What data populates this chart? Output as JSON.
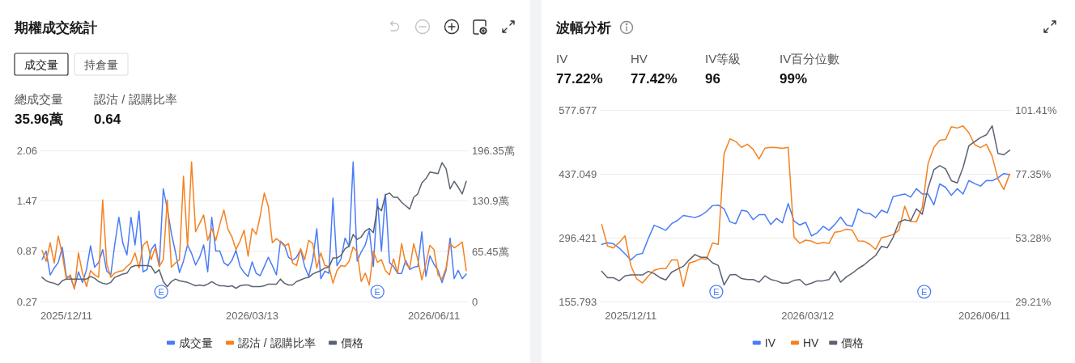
{
  "chart_data": [
    {
      "type": "line",
      "title": "期權成交統計",
      "x": [
        "2025-11-29",
        "2025-12-01",
        "2025-12-03",
        "2025-12-05",
        "2025-12-07",
        "2025-12-09",
        "2025-12-11",
        "2025-12-13",
        "2025-12-15",
        "2025-12-17",
        "2025-12-19",
        "2025-12-21",
        "2025-12-23",
        "2025-12-25",
        "2025-12-27",
        "2025-12-29",
        "2025-12-31",
        "2026-01-02",
        "2026-01-04",
        "2026-01-06",
        "2026-01-08",
        "2026-01-10",
        "2026-01-12",
        "2026-01-14",
        "2026-01-16",
        "2026-01-18",
        "2026-01-20",
        "2026-01-22",
        "2026-01-24",
        "2026-01-26",
        "2026-01-28",
        "2026-01-30",
        "2026-02-01",
        "2026-02-03",
        "2026-02-05",
        "2026-02-07",
        "2026-02-09",
        "2026-02-11",
        "2026-02-13",
        "2026-02-15",
        "2026-02-17",
        "2026-02-19",
        "2026-02-21",
        "2026-02-23",
        "2026-02-25",
        "2026-02-27",
        "2026-03-01",
        "2026-03-03",
        "2026-03-05",
        "2026-03-07",
        "2026-03-09",
        "2026-03-11",
        "2026-03-13",
        "2026-03-15",
        "2026-03-17",
        "2026-03-19",
        "2026-03-21",
        "2026-03-23",
        "2026-03-25",
        "2026-03-27",
        "2026-03-29",
        "2026-03-31",
        "2026-04-02",
        "2026-04-04",
        "2026-04-06",
        "2026-04-08",
        "2026-04-10",
        "2026-04-12",
        "2026-04-14",
        "2026-04-16",
        "2026-04-18",
        "2026-04-20",
        "2026-04-22",
        "2026-04-24",
        "2026-04-26",
        "2026-04-28",
        "2026-04-30",
        "2026-05-02",
        "2026-05-04",
        "2026-05-06",
        "2026-05-08",
        "2026-05-10",
        "2026-05-12",
        "2026-05-14",
        "2026-05-16",
        "2026-05-18",
        "2026-05-20",
        "2026-05-22",
        "2026-05-24",
        "2026-05-26",
        "2026-05-28",
        "2026-05-30",
        "2026-06-01",
        "2026-06-03",
        "2026-06-05",
        "2026-06-07",
        "2026-06-09",
        "2026-06-11",
        "2026-06-13",
        "2026-06-15",
        "2026-06-17",
        "2026-06-19",
        "2026-06-21",
        "2026-06-23",
        "2026-06-25",
        "2026-06-27"
      ],
      "xlim": [
        "2025-11-29",
        "2026-06-27"
      ],
      "xticks": [
        {
          "value": "2025-12-11",
          "label": "2025/12/11"
        },
        {
          "value": "2026-03-13",
          "label": "2026/03/13"
        },
        {
          "value": "2026-06-11",
          "label": "2026/06/11"
        }
      ],
      "ylim": [
        0.27,
        2.06
      ],
      "yticks": [
        0.27,
        0.87,
        1.47,
        2.06
      ],
      "y2lim": [
        0,
        196.35
      ],
      "y2ticks": [
        0,
        {
          "value": 65.45,
          "label": "65.45萬"
        },
        {
          "value": 130.9,
          "label": "130.9萬"
        },
        {
          "value": 196.35,
          "label": "196.35萬"
        }
      ],
      "series": [
        {
          "name": "成交量",
          "color": "#4a7cf7",
          "axis": "y2",
          "values": [
            55,
            66,
            35,
            44,
            51,
            71,
            33,
            32,
            18,
            39,
            25,
            42,
            73,
            45,
            51,
            68,
            40,
            35,
            75,
            110,
            76,
            61,
            110,
            74,
            118,
            39,
            42,
            68,
            75,
            46,
            147,
            121,
            89,
            65,
            38,
            53,
            74,
            63,
            48,
            58,
            74,
            39,
            110,
            66,
            66,
            51,
            47,
            54,
            67,
            46,
            38,
            33,
            52,
            37,
            34,
            46,
            58,
            47,
            35,
            79,
            74,
            58,
            54,
            58,
            68,
            46,
            33,
            55,
            95,
            30,
            40,
            37,
            135,
            47,
            56,
            83,
            72,
            182,
            53,
            65,
            74,
            93,
            46,
            134,
            66,
            140,
            51,
            46,
            37,
            37,
            54,
            42,
            45,
            46,
            91,
            33,
            60,
            49,
            41,
            25,
            41,
            83,
            30,
            41,
            30,
            36
          ]
        },
        {
          "name": "認沽 / 認購比率",
          "color": "#f5811f",
          "values": [
            0.88,
            0.75,
            0.97,
            0.73,
            1.05,
            0.83,
            0.54,
            0.59,
            0.42,
            0.85,
            0.61,
            0.45,
            0.64,
            0.59,
            0.56,
            1.48,
            0.72,
            0.56,
            0.61,
            0.63,
            0.64,
            0.69,
            0.73,
            0.85,
            0.67,
            0.94,
            0.99,
            0.77,
            0.91,
            0.69,
            0.77,
            1.48,
            0.68,
            0.73,
            0.77,
            1.76,
            0.93,
            1.93,
            1.1,
            1.2,
            1.3,
            1.0,
            1.14,
            1.0,
            1.19,
            1.36,
            1.13,
            1.04,
            0.89,
            0.99,
            1.12,
            0.81,
            1.14,
            1.07,
            1.29,
            1.56,
            1.4,
            0.97,
            1.02,
            0.98,
            0.93,
            0.96,
            0.73,
            0.7,
            0.9,
            0.77,
            1.0,
            0.96,
            0.67,
            0.85,
            0.7,
            0.69,
            0.49,
            0.64,
            0.7,
            0.69,
            0.75,
            0.92,
            0.86,
            0.51,
            0.61,
            0.47,
            0.87,
            0.74,
            0.77,
            0.64,
            0.59,
            0.78,
            0.61,
            0.96,
            0.72,
            0.67,
            0.96,
            0.77,
            0.53,
            0.72,
            0.94,
            0.89,
            0.59,
            0.54,
            0.67,
            0.96,
            0.91,
            0.94,
            0.98,
            0.64
          ]
        },
        {
          "name": "價格",
          "color": "#5b6270",
          "values": [
            0.56,
            0.52,
            0.5,
            0.49,
            0.47,
            0.52,
            0.54,
            0.54,
            0.54,
            0.54,
            0.54,
            0.54,
            0.57,
            0.55,
            0.51,
            0.49,
            0.48,
            0.5,
            0.56,
            0.58,
            0.6,
            0.61,
            0.68,
            0.7,
            0.7,
            0.7,
            0.7,
            0.69,
            0.61,
            0.65,
            0.51,
            0.45,
            0.51,
            0.54,
            0.52,
            0.51,
            0.5,
            0.48,
            0.46,
            0.47,
            0.46,
            0.48,
            0.51,
            0.48,
            0.46,
            0.46,
            0.45,
            0.46,
            0.43,
            0.46,
            0.47,
            0.47,
            0.45,
            0.45,
            0.45,
            0.46,
            0.48,
            0.48,
            0.48,
            0.54,
            0.49,
            0.47,
            0.47,
            0.51,
            0.53,
            0.55,
            0.56,
            0.6,
            0.62,
            0.64,
            0.67,
            0.68,
            0.79,
            0.79,
            0.82,
            0.9,
            0.93,
            1.07,
            1.01,
            1.04,
            1.11,
            1.14,
            1.09,
            1.4,
            1.35,
            1.54,
            1.56,
            1.51,
            1.51,
            1.45,
            1.41,
            1.37,
            1.51,
            1.55,
            1.68,
            1.73,
            1.81,
            1.8,
            1.79,
            1.92,
            1.85,
            1.61,
            1.7,
            1.63,
            1.55,
            1.7
          ]
        }
      ],
      "grid": "y",
      "legend": "bottom",
      "annotations": [
        "成交量",
        "持倉量",
        "總成交量",
        "35.96萬",
        "認沽 / 認購比率",
        "0.64",
        {
          "text": "E",
          "x": "2026-01-27",
          "y": 0.39
        },
        {
          "text": "E",
          "x": "2026-05-14",
          "y": 0.39
        }
      ]
    },
    {
      "type": "line",
      "title": "波幅分析",
      "x": [
        "2025-11-26",
        "2025-11-29",
        "2025-12-02",
        "2025-12-05",
        "2025-12-08",
        "2025-12-11",
        "2025-12-14",
        "2025-12-17",
        "2025-12-20",
        "2025-12-23",
        "2025-12-26",
        "2025-12-29",
        "2026-01-01",
        "2026-01-04",
        "2026-01-07",
        "2026-01-10",
        "2026-01-13",
        "2026-01-16",
        "2026-01-19",
        "2026-01-22",
        "2026-01-25",
        "2026-01-28",
        "2026-01-31",
        "2026-02-03",
        "2026-02-06",
        "2026-02-09",
        "2026-02-12",
        "2026-02-15",
        "2026-02-18",
        "2026-02-21",
        "2026-02-24",
        "2026-02-27",
        "2026-03-02",
        "2026-03-05",
        "2026-03-08",
        "2026-03-11",
        "2026-03-14",
        "2026-03-17",
        "2026-03-20",
        "2026-03-23",
        "2026-03-26",
        "2026-03-29",
        "2026-04-01",
        "2026-04-04",
        "2026-04-07",
        "2026-04-10",
        "2026-04-13",
        "2026-04-16",
        "2026-04-19",
        "2026-04-22",
        "2026-04-25",
        "2026-04-28",
        "2026-05-01",
        "2026-05-04",
        "2026-05-07",
        "2026-05-10",
        "2026-05-13",
        "2026-05-16",
        "2026-05-19",
        "2026-05-22",
        "2026-05-25",
        "2026-05-28",
        "2026-05-31",
        "2026-06-03",
        "2026-06-06",
        "2026-06-09",
        "2026-06-12",
        "2026-06-15",
        "2026-06-18",
        "2026-06-21",
        "2026-06-24"
      ],
      "xlim": [
        "2025-11-26",
        "2026-06-24"
      ],
      "xticks": [
        {
          "value": "2025-12-11",
          "label": "2025/12/11"
        },
        {
          "value": "2026-03-12",
          "label": "2026/03/12"
        },
        {
          "value": "2026-06-11",
          "label": "2026/06/11"
        }
      ],
      "ylim": [
        155.793,
        577.677
      ],
      "yticks": [
        155.793,
        296.421,
        437.049,
        577.677
      ],
      "y2lim": [
        29.21,
        101.41
      ],
      "y2ticks": [
        {
          "value": 29.21,
          "label": "29.21%"
        },
        {
          "value": 53.28,
          "label": "53.28%"
        },
        {
          "value": 77.35,
          "label": "77.35%"
        },
        {
          "value": 101.41,
          "label": "101.41%"
        }
      ],
      "series": [
        {
          "name": "IV",
          "color": "#4a7cf7",
          "axis": "y2",
          "values": [
            50.9,
            51.5,
            51.1,
            49.5,
            47.3,
            45.0,
            47.0,
            47.5,
            53.1,
            58.1,
            57.2,
            56.2,
            58.7,
            59.9,
            61.8,
            61.4,
            61.0,
            61.8,
            63.3,
            65.5,
            65.7,
            64.3,
            59.4,
            58.7,
            63.8,
            63.3,
            60.2,
            62.1,
            62.1,
            58.4,
            60.7,
            59.0,
            66.3,
            59.7,
            58.2,
            59.2,
            54.1,
            55.3,
            57.7,
            56.2,
            58.4,
            61.2,
            58.2,
            57.7,
            64.3,
            62.8,
            62.5,
            61.0,
            63.8,
            62.8,
            68.9,
            69.4,
            69.9,
            68.7,
            71.9,
            69.9,
            69.9,
            65.8,
            73.7,
            72.4,
            69.4,
            71.9,
            69.9,
            75.0,
            73.8,
            72.9,
            75.0,
            74.9,
            76.0,
            77.6,
            77.2
          ]
        },
        {
          "name": "HV",
          "color": "#f5811f",
          "axis": "y2",
          "values": [
            58.4,
            50.3,
            49.5,
            51.6,
            54.1,
            42.9,
            37.9,
            36.3,
            38.9,
            41.1,
            41.7,
            41.7,
            45.0,
            45.0,
            35.0,
            43.8,
            44.5,
            45.5,
            45.3,
            51.4,
            50.9,
            85.1,
            90.7,
            89.7,
            87.5,
            88.7,
            86.7,
            83.1,
            87.2,
            87.5,
            87.4,
            87.1,
            87.5,
            53.6,
            51.3,
            52.5,
            52.1,
            51.1,
            51.6,
            51.3,
            55.5,
            55.8,
            56.6,
            56.2,
            52.2,
            52.1,
            50.9,
            49.0,
            53.4,
            53.9,
            54.6,
            56.2,
            65.3,
            59.5,
            59.4,
            64.8,
            81.4,
            87.5,
            90.2,
            90.5,
            95.3,
            94.8,
            95.6,
            93.0,
            88.5,
            87.4,
            88.7,
            84.1,
            75.5,
            71.6,
            77.4
          ]
        },
        {
          "name": "價格",
          "color": "#5b6270",
          "values": [
            223,
            209,
            209,
            202,
            213,
            215,
            215,
            215,
            223,
            218,
            209,
            204,
            221,
            228,
            234,
            248,
            260,
            254,
            254,
            242,
            236,
            193,
            215,
            216,
            207,
            205,
            205,
            199,
            213,
            205,
            202,
            197,
            197,
            203,
            205,
            193,
            197,
            202,
            202,
            205,
            223,
            199,
            211,
            219,
            229,
            237,
            248,
            258,
            278,
            275,
            298,
            331,
            337,
            334,
            361,
            349,
            407,
            447,
            456,
            449,
            423,
            418,
            452,
            500,
            509,
            518,
            524,
            544,
            483,
            480,
            490
          ]
        }
      ],
      "grid": "y",
      "legend": "bottom",
      "annotations": [
        "IV",
        "77.22%",
        "HV",
        "77.42%",
        "IV等級",
        "96",
        "IV百分位數",
        "99%",
        {
          "text": "E",
          "x": "2026-01-24",
          "y": 178
        },
        {
          "text": "E",
          "x": "2026-05-11",
          "y": 178
        }
      ]
    }
  ]
}
